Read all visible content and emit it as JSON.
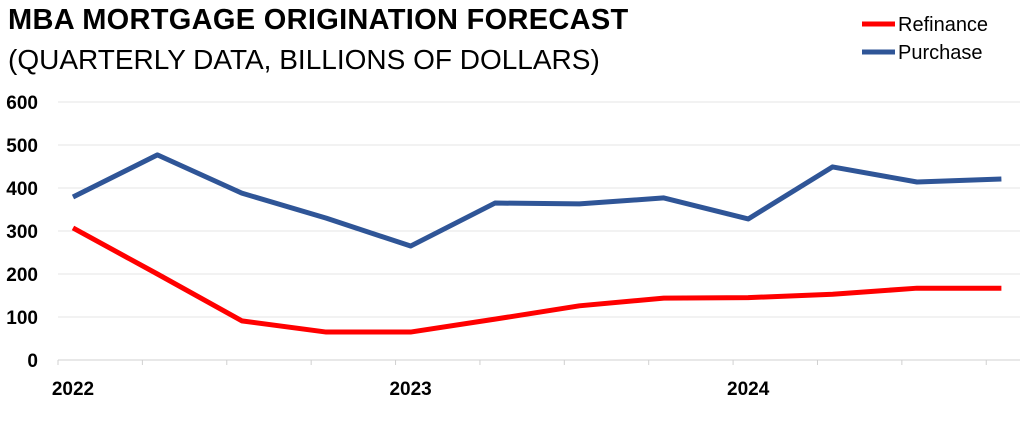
{
  "chart_data": {
    "type": "line",
    "title": "MBA MORTGAGE ORIGINATION FORECAST",
    "subtitle": "(QUARTERLY DATA, BILLIONS OF DOLLARS)",
    "xlabel": "",
    "ylabel": "",
    "ylim": [
      0,
      600
    ],
    "yticks": [
      "0",
      "100",
      "200",
      "300",
      "400",
      "500",
      "600"
    ],
    "x": [
      "2022 Q1",
      "2022 Q2",
      "2022 Q3",
      "2022 Q4",
      "2023 Q1",
      "2023 Q2",
      "2023 Q3",
      "2023 Q4",
      "2024 Q1",
      "2024 Q2",
      "2024 Q3",
      "2024 Q4"
    ],
    "xtick_labels": [
      {
        "label": "2022",
        "index": 0
      },
      {
        "label": "2023",
        "index": 4
      },
      {
        "label": "2024",
        "index": 8
      }
    ],
    "grid": true,
    "legend_position": "top-right",
    "series": [
      {
        "name": "Refinance",
        "color": "#ff0000",
        "values": [
          307,
          200,
          91,
          65,
          65,
          95,
          126,
          144,
          145,
          153,
          167,
          167
        ]
      },
      {
        "name": "Purchase",
        "color": "#2f5597",
        "values": [
          379,
          477,
          388,
          330,
          265,
          365,
          363,
          377,
          328,
          449,
          414,
          421
        ]
      }
    ]
  }
}
